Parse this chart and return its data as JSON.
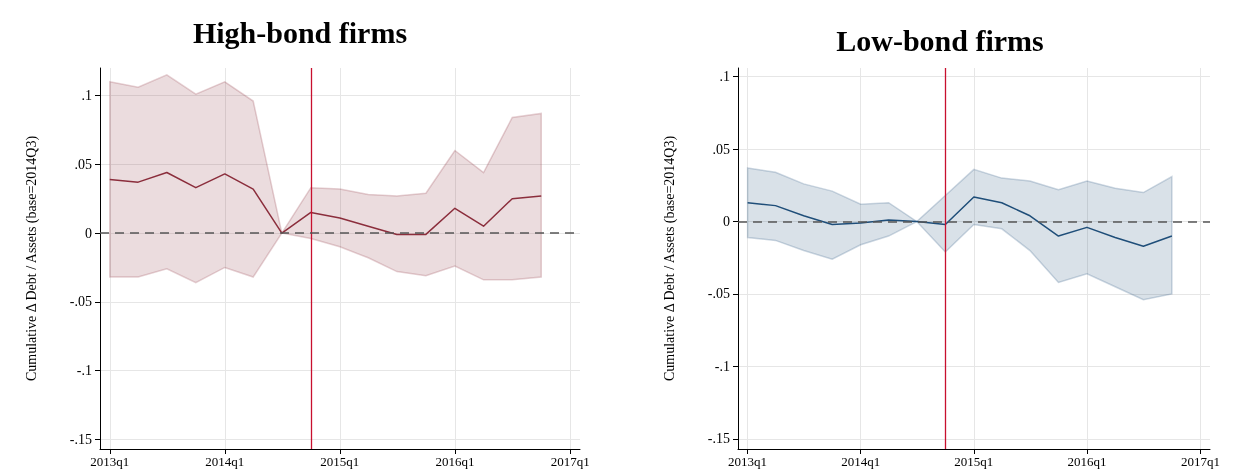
{
  "chart_data": [
    {
      "type": "line",
      "title": "High-bond firms",
      "ylabel": "Cumulative Δ Debt / Assets (base=2014Q3)",
      "x": [
        "2013-01",
        "2013-04",
        "2013-07",
        "2013-10",
        "2014-01",
        "2014-04",
        "2014-07",
        "2014-10",
        "2015-01",
        "2015-04",
        "2015-07",
        "2015-10",
        "2016-01",
        "2016-04",
        "2016-07",
        "2016-10"
      ],
      "series": [
        {
          "color": "#8b2e3c",
          "values": [
            0.039,
            0.037,
            0.044,
            0.033,
            0.043,
            0.032,
            0,
            0.015,
            0.011,
            0.005,
            -0.001,
            -0.001,
            0.018,
            0.005,
            0.025,
            0.027
          ],
          "upper": [
            0.11,
            0.106,
            0.115,
            0.101,
            0.11,
            0.096,
            0,
            0.033,
            0.032,
            0.028,
            0.027,
            0.029,
            0.06,
            0.044,
            0.084,
            0.087
          ],
          "lower": [
            -0.032,
            -0.032,
            -0.026,
            -0.036,
            -0.025,
            -0.032,
            0,
            -0.004,
            -0.01,
            -0.018,
            -0.028,
            -0.031,
            -0.024,
            -0.034,
            -0.034,
            -0.032
          ]
        }
      ],
      "xlim": [
        "2012-12-01",
        "2017-02-01"
      ],
      "xticks": [
        {
          "value": "2013-01",
          "label": "2013q1"
        },
        {
          "value": "2014-01",
          "label": "2014q1"
        },
        {
          "value": "2015-01",
          "label": "2015q1"
        },
        {
          "value": "2016-01",
          "label": "2016q1"
        },
        {
          "value": "2017-01",
          "label": "2017q1"
        }
      ],
      "ylim": [
        -0.157,
        0.12
      ],
      "yticks": [
        {
          "value": -0.15,
          "label": "-.15"
        },
        {
          "value": -0.1,
          "label": "-.1"
        },
        {
          "value": -0.05,
          "label": "-.05"
        },
        0,
        {
          "value": 0.05,
          "label": ".05"
        },
        {
          "value": 0.1,
          "label": ".1"
        }
      ],
      "ref_lines": [
        {
          "axis": "x",
          "value": "2014-10",
          "color": "#c8102e",
          "line_style": "solid"
        },
        {
          "axis": "y",
          "value": 0,
          "color": "#555555",
          "line_style": "dashed"
        }
      ],
      "grid": true,
      "marker": "none",
      "line_style": "solid"
    },
    {
      "type": "line",
      "title": "Low-bond firms",
      "ylabel": "Cumulative Δ Debt / Assets (base=2014Q3)",
      "x": [
        "2013-01",
        "2013-04",
        "2013-07",
        "2013-10",
        "2014-01",
        "2014-04",
        "2014-07",
        "2014-10",
        "2015-01",
        "2015-04",
        "2015-07",
        "2015-10",
        "2016-01",
        "2016-04",
        "2016-07",
        "2016-10"
      ],
      "series": [
        {
          "color": "#1f4e79",
          "values": [
            0.013,
            0.011,
            0.004,
            -0.002,
            -0.001,
            0.001,
            0,
            -0.002,
            0.017,
            0.013,
            0.004,
            -0.01,
            -0.004,
            -0.011,
            -0.017,
            -0.01
          ],
          "upper": [
            0.037,
            0.034,
            0.026,
            0.021,
            0.012,
            0.013,
            0,
            0.018,
            0.036,
            0.03,
            0.028,
            0.022,
            0.028,
            0.023,
            0.02,
            0.031
          ],
          "lower": [
            -0.011,
            -0.013,
            -0.02,
            -0.026,
            -0.016,
            -0.01,
            0,
            -0.021,
            -0.002,
            -0.005,
            -0.02,
            -0.042,
            -0.036,
            -0.045,
            -0.054,
            -0.05
          ]
        }
      ],
      "xlim": [
        "2012-12-01",
        "2017-02-01"
      ],
      "xticks": [
        {
          "value": "2013-01",
          "label": "2013q1"
        },
        {
          "value": "2014-01",
          "label": "2014q1"
        },
        {
          "value": "2015-01",
          "label": "2015q1"
        },
        {
          "value": "2016-01",
          "label": "2016q1"
        },
        {
          "value": "2017-01",
          "label": "2017q1"
        }
      ],
      "ylim": [
        -0.157,
        0.106
      ],
      "yticks": [
        {
          "value": -0.15,
          "label": "-.15"
        },
        {
          "value": -0.1,
          "label": "-.1"
        },
        {
          "value": -0.05,
          "label": "-.05"
        },
        0,
        {
          "value": 0.05,
          "label": ".05"
        },
        {
          "value": 0.1,
          "label": ".1"
        }
      ],
      "ref_lines": [
        {
          "axis": "x",
          "value": "2014-10",
          "color": "#c8102e",
          "line_style": "solid"
        },
        {
          "axis": "y",
          "value": 0,
          "color": "#555555",
          "line_style": "dashed"
        }
      ],
      "grid": true,
      "marker": "none",
      "line_style": "solid"
    }
  ]
}
